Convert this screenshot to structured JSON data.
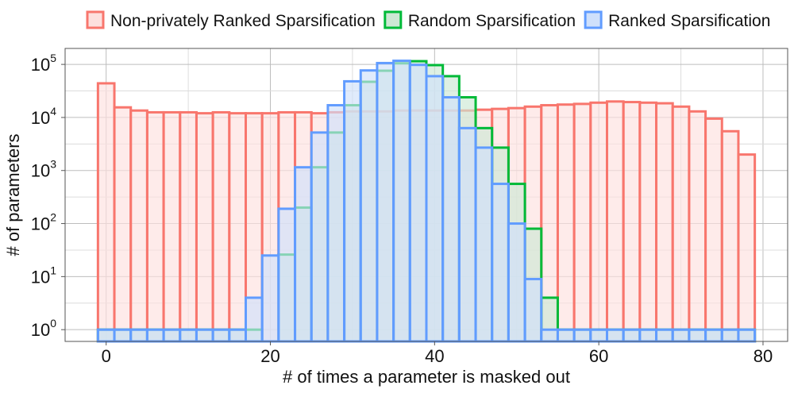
{
  "chart_data": {
    "type": "bar",
    "subtype": "overlaid-histogram",
    "title": "",
    "xlabel": "# of times a parameter is masked out",
    "ylabel": "# of parameters",
    "x_ticks": [
      0,
      20,
      40,
      60,
      80
    ],
    "x_tick_labels": [
      "0",
      "20",
      "40",
      "60",
      "80"
    ],
    "y_scale": "log",
    "y_ticks": [
      1,
      10,
      100,
      1000,
      10000,
      100000
    ],
    "y_tick_labels": [
      {
        "base": "10",
        "exp": "0"
      },
      {
        "base": "10",
        "exp": "1"
      },
      {
        "base": "10",
        "exp": "2"
      },
      {
        "base": "10",
        "exp": "3"
      },
      {
        "base": "10",
        "exp": "4"
      },
      {
        "base": "10",
        "exp": "5"
      }
    ],
    "xlim": [
      -5,
      83
    ],
    "ylim": [
      0.6,
      200000
    ],
    "grid": true,
    "legend_position": "top",
    "bin_width": 2,
    "bin_starts": [
      -1,
      1,
      3,
      5,
      7,
      9,
      11,
      13,
      15,
      17,
      19,
      21,
      23,
      25,
      27,
      29,
      31,
      33,
      35,
      37,
      39,
      41,
      43,
      45,
      47,
      49,
      51,
      53,
      55,
      57,
      59,
      61,
      63,
      65,
      67,
      69,
      71,
      73,
      75,
      77
    ],
    "series": [
      {
        "name": "Non-privately Ranked Sparsification",
        "stroke": "#f8766d",
        "fill": "#fde0de",
        "values": [
          44000,
          15500,
          13500,
          12500,
          12500,
          12500,
          12000,
          12500,
          12000,
          12000,
          12000,
          12500,
          12500,
          12000,
          12500,
          13000,
          13000,
          13000,
          13500,
          13500,
          13500,
          13500,
          13500,
          14000,
          14500,
          15000,
          16000,
          17000,
          17500,
          18000,
          19000,
          20000,
          19500,
          19000,
          18500,
          16000,
          13000,
          9500,
          5500,
          2000
        ]
      },
      {
        "name": "Random Sparsification",
        "stroke": "#00ba38",
        "fill": "#cde8d4",
        "values": [
          1,
          1,
          1,
          1,
          1,
          1,
          1,
          1,
          1,
          1,
          0,
          26,
          200,
          1150,
          5200,
          17000,
          47000,
          76000,
          105000,
          115000,
          97000,
          60000,
          24000,
          6300,
          2700,
          560,
          80,
          4,
          1,
          1,
          1,
          1,
          1,
          1,
          1,
          1,
          1,
          1,
          1,
          1
        ]
      },
      {
        "name": "Ranked Sparsification",
        "stroke": "#619cff",
        "fill": "#cfe0fb",
        "values": [
          1,
          1,
          1,
          1,
          1,
          1,
          1,
          1,
          1,
          4,
          25,
          190,
          1150,
          5200,
          17000,
          48000,
          77000,
          106000,
          117000,
          98000,
          60000,
          24000,
          6300,
          2700,
          560,
          100,
          9,
          1,
          1,
          1,
          1,
          1,
          1,
          1,
          1,
          1,
          1,
          1,
          1,
          1
        ]
      }
    ]
  }
}
